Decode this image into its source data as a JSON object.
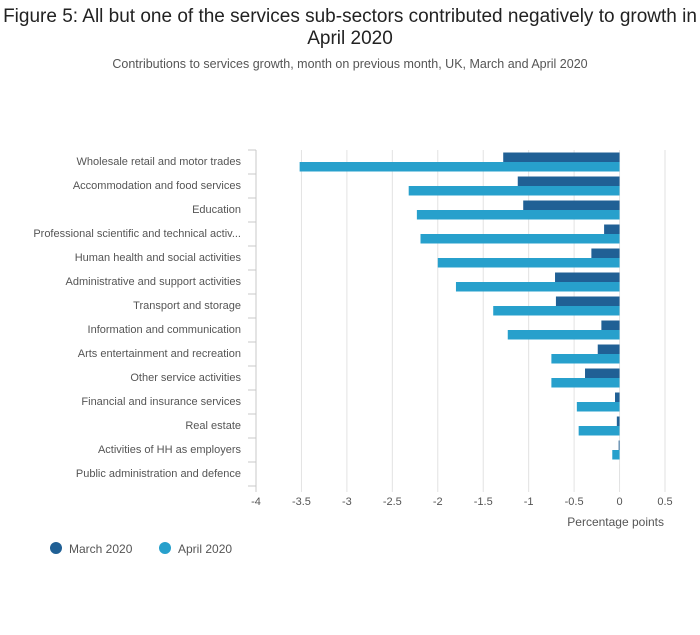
{
  "chart_data": {
    "type": "bar",
    "orientation": "horizontal",
    "title": "Figure 5: All but one of the services sub-sectors contributed negatively to growth in April 2020",
    "subtitle": "Contributions to services growth, month on previous month, UK, March and April 2020",
    "xlabel": "Percentage points",
    "ylabel": "",
    "xlim": [
      -4,
      0.5
    ],
    "xticks": [
      -4,
      -3.5,
      -3,
      -2.5,
      -2,
      -1.5,
      -1,
      -0.5,
      0,
      0.5
    ],
    "grid": "vertical",
    "legend_position": "bottom-left",
    "categories": [
      "Wholesale retail and motor trades",
      "Accommodation and food services",
      "Education",
      "Professional scientific and technical activ...",
      "Human health and social activities",
      "Administrative and support activities",
      "Transport and storage",
      "Information and communication",
      "Arts entertainment and recreation",
      "Other service activities",
      "Financial and insurance services",
      "Real estate",
      "Activities of HH as employers",
      "Public administration and defence"
    ],
    "series": [
      {
        "name": "March 2020",
        "color": "#206095",
        "values": [
          -1.28,
          -1.12,
          -1.06,
          -0.17,
          -0.31,
          -0.71,
          -0.7,
          -0.2,
          -0.24,
          -0.38,
          -0.05,
          -0.03,
          -0.01,
          0.0
        ]
      },
      {
        "name": "April 2020",
        "color": "#27a0cc",
        "values": [
          -3.52,
          -2.32,
          -2.23,
          -2.19,
          -2.0,
          -1.8,
          -1.39,
          -1.23,
          -0.75,
          -0.75,
          -0.47,
          -0.45,
          -0.08,
          0.0
        ]
      }
    ]
  }
}
